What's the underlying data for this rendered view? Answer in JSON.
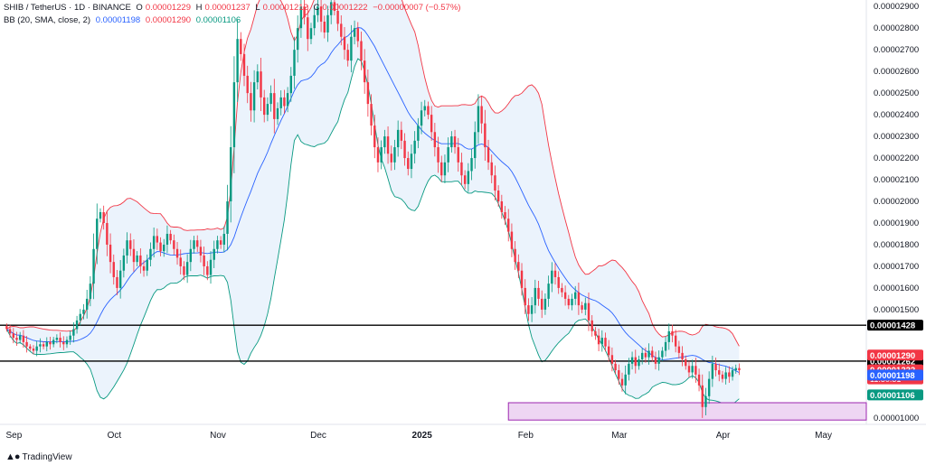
{
  "legend": {
    "symbol": "SHIB / TetherUS · 1D · BINANCE",
    "o_label": "O",
    "o": "0.00001229",
    "h_label": "H",
    "h": "0.00001237",
    "l_label": "L",
    "l": "0.00001212",
    "c_label": "C",
    "c": "0.00001222",
    "change": "−0.00000007 (−0.57%)",
    "bb_name": "BB (20, SMA, close, 2)",
    "bb_basis": "0.00001198",
    "bb_upper": "0.00001290",
    "bb_lower": "0.00001106"
  },
  "footer": {
    "brand": "TradingView"
  },
  "colors": {
    "up": "#089981",
    "down": "#f23645",
    "basis": "#2962ff",
    "upper": "#f23645",
    "lower": "#089981",
    "band_fill": "#e6f0fb",
    "zone_fill": "#eed6f3",
    "zone_border": "#9c27b0",
    "level_line": "#000000",
    "axis_text": "#131722"
  },
  "chart_data": {
    "type": "candlestick",
    "y_range": [
      9.7e-06,
      2.93e-05
    ],
    "y_ticks": [
      "0.00002900",
      "0.00002800",
      "0.00002700",
      "0.00002600",
      "0.00002500",
      "0.00002400",
      "0.00002300",
      "0.00002200",
      "0.00002100",
      "0.00002000",
      "0.00001900",
      "0.00001800",
      "0.00001700",
      "0.00001600",
      "0.00001500",
      "0.00001000"
    ],
    "x_ticks": [
      {
        "label": "Sep",
        "day": 0
      },
      {
        "label": "Oct",
        "day": 30
      },
      {
        "label": "Nov",
        "day": 61
      },
      {
        "label": "Dec",
        "day": 91
      },
      {
        "label": "2025",
        "day": 122
      },
      {
        "label": "Feb",
        "day": 153
      },
      {
        "label": "Mar",
        "day": 181
      },
      {
        "label": "Apr",
        "day": 212
      },
      {
        "label": "May",
        "day": 242
      }
    ],
    "x_range_days": [
      -2,
      257
    ],
    "levels": [
      {
        "value": 1.428e-05,
        "label": "0.00001428"
      },
      {
        "value": 1.262e-05,
        "label": "0.00001262"
      }
    ],
    "zone": {
      "from": 9.9e-06,
      "to": 1.07e-05,
      "start_day": 150
    },
    "price_tags": [
      {
        "value": 1.29e-05,
        "label": "0.00001290",
        "color": "#f23645"
      },
      {
        "value": 1.222e-05,
        "label": "0.00001222",
        "sub": "11:50:51",
        "color": "#f23645"
      },
      {
        "value": 1.198e-05,
        "label": "0.00001198",
        "color": "#2962ff"
      },
      {
        "value": 1.106e-05,
        "label": "0.00001106",
        "color": "#089981"
      }
    ],
    "closes": [
      1.41e-05,
      1.39e-05,
      1.37e-05,
      1.36e-05,
      1.38e-05,
      1.35e-05,
      1.33e-05,
      1.32e-05,
      1.31e-05,
      1.33e-05,
      1.34e-05,
      1.33e-05,
      1.35e-05,
      1.34e-05,
      1.36e-05,
      1.37e-05,
      1.35e-05,
      1.34e-05,
      1.36e-05,
      1.38e-05,
      1.41e-05,
      1.45e-05,
      1.48e-05,
      1.5e-05,
      1.55e-05,
      1.62e-05,
      1.78e-05,
      1.92e-05,
      1.95e-05,
      1.9e-05,
      1.8e-05,
      1.72e-05,
      1.65e-05,
      1.6e-05,
      1.68e-05,
      1.75e-05,
      1.82e-05,
      1.78e-05,
      1.72e-05,
      1.75e-05,
      1.7e-05,
      1.68e-05,
      1.73e-05,
      1.78e-05,
      1.84e-05,
      1.81e-05,
      1.77e-05,
      1.8e-05,
      1.85e-05,
      1.82e-05,
      1.78e-05,
      1.74e-05,
      1.7e-05,
      1.66e-05,
      1.72e-05,
      1.78e-05,
      1.82e-05,
      1.79e-05,
      1.75e-05,
      1.7e-05,
      1.66e-05,
      1.73e-05,
      1.78e-05,
      1.82e-05,
      1.8e-05,
      1.85e-05,
      2e-05,
      2.25e-05,
      2.55e-05,
      2.75e-05,
      2.68e-05,
      2.58e-05,
      2.5e-05,
      2.42e-05,
      2.55e-05,
      2.6e-05,
      2.48e-05,
      2.4e-05,
      2.45e-05,
      2.5e-05,
      2.38e-05,
      2.43e-05,
      2.48e-05,
      2.44e-05,
      2.5e-05,
      2.58e-05,
      2.7e-05,
      2.8e-05,
      2.9e-05,
      2.85e-05,
      2.75e-05,
      2.8e-05,
      2.86e-05,
      2.9e-05,
      2.83e-05,
      2.78e-05,
      2.86e-05,
      2.92e-05,
      2.88e-05,
      2.82e-05,
      2.76e-05,
      2.7e-05,
      2.65e-05,
      2.76e-05,
      2.8e-05,
      2.74e-05,
      2.65e-05,
      2.55e-05,
      2.45e-05,
      2.35e-05,
      2.25e-05,
      2.18e-05,
      2.25e-05,
      2.3e-05,
      2.22e-05,
      2.18e-05,
      2.25e-05,
      2.33e-05,
      2.28e-05,
      2.2e-05,
      2.15e-05,
      2.22e-05,
      2.28e-05,
      2.35e-05,
      2.42e-05,
      2.44e-05,
      2.4e-05,
      2.32e-05,
      2.25e-05,
      2.18e-05,
      2.12e-05,
      2.18e-05,
      2.25e-05,
      2.3e-05,
      2.25e-05,
      2.18e-05,
      2.12e-05,
      2.08e-05,
      2.14e-05,
      2.2e-05,
      2.32e-05,
      2.44e-05,
      2.36e-05,
      2.25e-05,
      2.18e-05,
      2.12e-05,
      2.05e-05,
      2e-05,
      1.95e-05,
      1.92e-05,
      1.86e-05,
      1.78e-05,
      1.72e-05,
      1.68e-05,
      1.6e-05,
      1.52e-05,
      1.48e-05,
      1.52e-05,
      1.6e-05,
      1.55e-05,
      1.5e-05,
      1.55e-05,
      1.62e-05,
      1.68e-05,
      1.65e-05,
      1.6e-05,
      1.58e-05,
      1.55e-05,
      1.52e-05,
      1.55e-05,
      1.58e-05,
      1.52e-05,
      1.5e-05,
      1.53e-05,
      1.45e-05,
      1.4e-05,
      1.38e-05,
      1.34e-05,
      1.37e-05,
      1.33e-05,
      1.29e-05,
      1.25e-05,
      1.22e-05,
      1.18e-05,
      1.15e-05,
      1.2e-05,
      1.25e-05,
      1.28e-05,
      1.24e-05,
      1.27e-05,
      1.3e-05,
      1.28e-05,
      1.31e-05,
      1.28e-05,
      1.25e-05,
      1.28e-05,
      1.31e-05,
      1.35e-05,
      1.4e-05,
      1.38e-05,
      1.33e-05,
      1.3e-05,
      1.27e-05,
      1.24e-05,
      1.21e-05,
      1.24e-05,
      1.2e-05,
      1.15e-05,
      1.05e-05,
      1.1e-05,
      1.18e-05,
      1.25e-05,
      1.22e-05,
      1.2e-05,
      1.18e-05,
      1.21e-05,
      1.19e-05,
      1.22e-05,
      1.23e-05,
      1.22e-05
    ]
  }
}
